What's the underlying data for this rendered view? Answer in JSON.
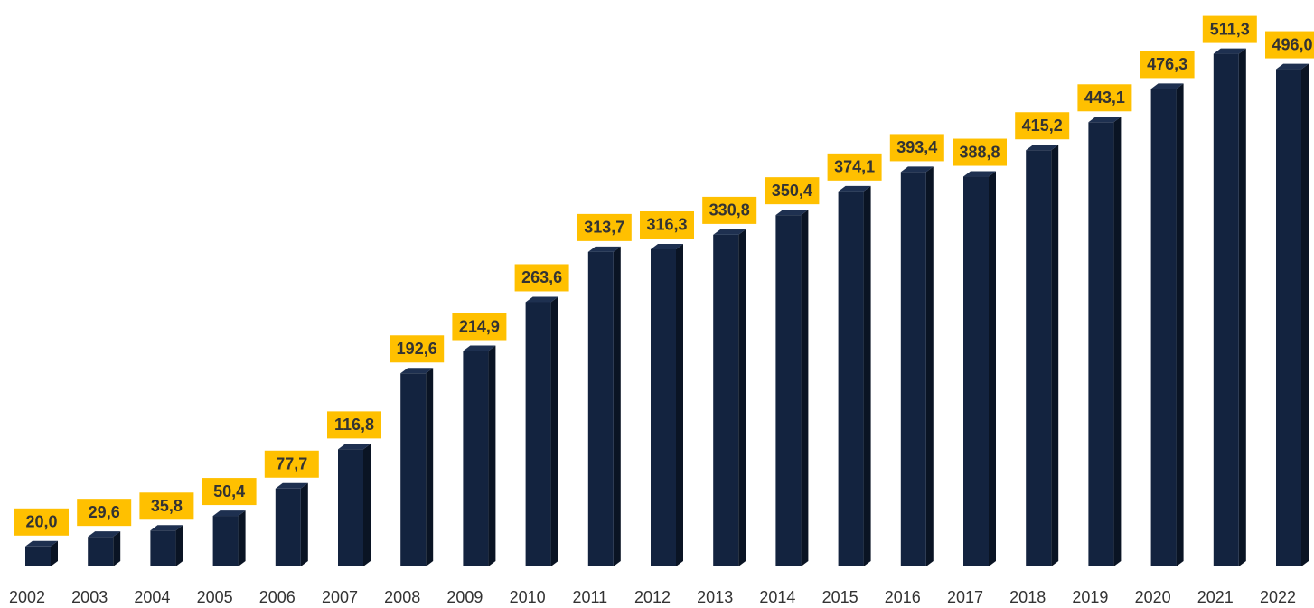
{
  "chart_data": {
    "type": "bar",
    "categories": [
      "2002",
      "2003",
      "2004",
      "2005",
      "2006",
      "2007",
      "2008",
      "2009",
      "2010",
      "2011",
      "2012",
      "2013",
      "2014",
      "2015",
      "2016",
      "2017",
      "2018",
      "2019",
      "2020",
      "2021",
      "2022"
    ],
    "values": [
      20.0,
      29.6,
      35.8,
      50.4,
      77.7,
      116.8,
      192.6,
      214.9,
      263.6,
      313.7,
      316.3,
      330.8,
      350.4,
      374.1,
      393.4,
      388.8,
      415.2,
      443.1,
      476.3,
      511.3,
      496.0
    ],
    "value_labels": [
      "20,0",
      "29,6",
      "35,8",
      "50,4",
      "77,7",
      "116,8",
      "192,6",
      "214,9",
      "263,6",
      "313,7",
      "316,3",
      "330,8",
      "350,4",
      "374,1",
      "393,4",
      "388,8",
      "415,2",
      "443,1",
      "476,3",
      "511,3",
      "496,0"
    ],
    "color": "#13233f",
    "label_color": "#ffc000",
    "ylim": [
      0,
      565
    ]
  }
}
